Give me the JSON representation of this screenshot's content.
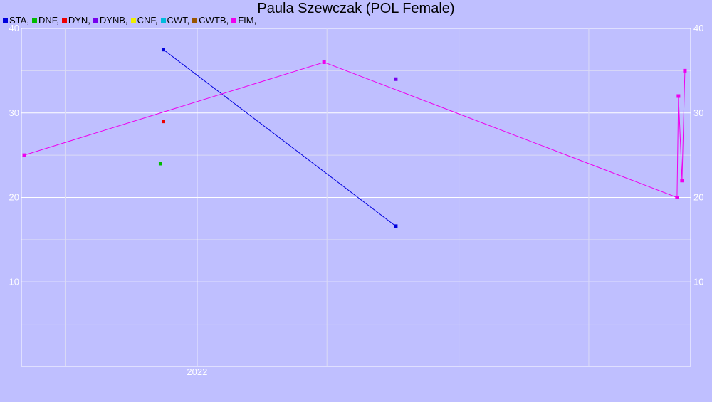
{
  "chart_data": {
    "type": "scatter",
    "title": "Paula Szewczak (POL Female)",
    "xlabel": "",
    "ylabel": "",
    "background": "#bfbfff",
    "grid": true,
    "ylim": [
      0,
      40
    ],
    "y_ticks": [
      10,
      20,
      30,
      40
    ],
    "xlim": [
      "2021-05-01",
      "2023-11-20"
    ],
    "x_major_ticks": [
      {
        "date": "2022-01-01",
        "label": "2022"
      }
    ],
    "x_minor_ticks": [
      "2021-07-01",
      "2022-07-01",
      "2023-01-01",
      "2023-07-01"
    ],
    "legend_position": "top-left",
    "legend": [
      {
        "label": "STA,",
        "color": "#0000dd"
      },
      {
        "label": "DNF,",
        "color": "#00bb00"
      },
      {
        "label": "DYN,",
        "color": "#ee0000"
      },
      {
        "label": "DYNB,",
        "color": "#7700ee"
      },
      {
        "label": "CNF,",
        "color": "#eeee00"
      },
      {
        "label": "CWT,",
        "color": "#00bbdd"
      },
      {
        "label": "CWTB,",
        "color": "#995500"
      },
      {
        "label": "FIM,",
        "color": "#ee00ee"
      }
    ],
    "series": [
      {
        "key": "STA",
        "color": "#0000dd",
        "points": [
          {
            "x": "2021-11-15",
            "y": 37.5
          },
          {
            "x": "2022-10-05",
            "y": 16.6
          }
        ]
      },
      {
        "key": "DNF",
        "color": "#00bb00",
        "points": [
          {
            "x": "2021-11-11",
            "y": 24.0
          }
        ]
      },
      {
        "key": "DYN",
        "color": "#ee0000",
        "points": [
          {
            "x": "2021-11-15",
            "y": 29.0
          }
        ]
      },
      {
        "key": "DYNB",
        "color": "#7700ee",
        "points": [
          {
            "x": "2022-10-05",
            "y": 34.0
          }
        ]
      },
      {
        "key": "FIM",
        "color": "#ee00ee",
        "points": [
          {
            "x": "2021-05-05",
            "y": 25.0
          },
          {
            "x": "2022-06-27",
            "y": 36.0
          },
          {
            "x": "2023-11-01",
            "y": 20.0
          },
          {
            "x": "2023-11-03",
            "y": 32.0
          },
          {
            "x": "2023-11-08",
            "y": 22.0
          },
          {
            "x": "2023-11-12",
            "y": 35.0
          }
        ]
      }
    ]
  }
}
